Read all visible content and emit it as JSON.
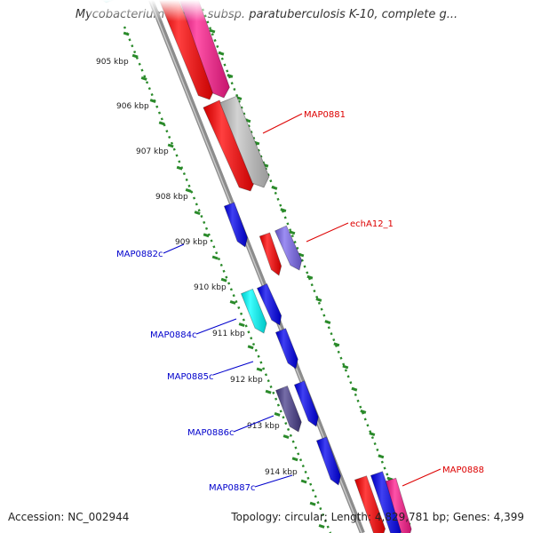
{
  "title": "Mycobacterium avium subsp. paratuberculosis K-10, complete g...",
  "accession": "Accession: NC_002944",
  "topology": "Topology: circular; Length: 4,829,781 bp; Genes: 4,399",
  "colors": {
    "forward_label": "#dd0000",
    "reverse_label": "#0000cc",
    "tick_dots": "#2a8a2a",
    "backbone": "#8c8c8c",
    "red_gene": "#ff0000",
    "pink_gene": "#ff1a8c",
    "gray_gene": "#c4c4c4",
    "blue_gene": "#0000ee",
    "cyan_gene": "#00ffff",
    "lavender_gene": "#7b68ee",
    "slate_gene": "#483d8b"
  },
  "scale_labels": [
    "905 kbp",
    "906 kbp",
    "907 kbp",
    "908 kbp",
    "909 kbp",
    "910 kbp",
    "911 kbp",
    "912 kbp",
    "913 kbp",
    "914 kbp"
  ],
  "gene_labels": [
    "MAP0881",
    "echA12_1",
    "MAP0882c",
    "MAP0884c",
    "MAP0885c",
    "MAP0886c",
    "MAP0887c",
    "MAP0888"
  ]
}
